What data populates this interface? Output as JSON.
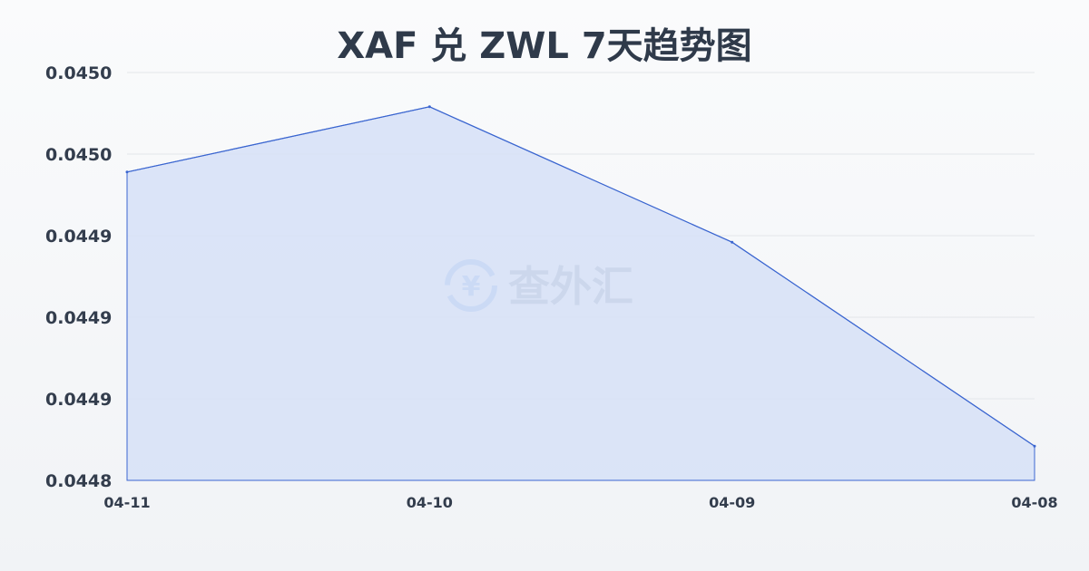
{
  "chart_data": {
    "type": "area",
    "title": "XAF 兑 ZWL 7天趋势图",
    "xlabel": "",
    "ylabel": "",
    "categories": [
      "04-11",
      "04-10",
      "04-09",
      "04-08"
    ],
    "series": [
      {
        "values": [
          0.044989,
          0.045029,
          0.044946,
          0.044821
        ]
      }
    ],
    "ylim": [
      0.0448,
      0.04505
    ],
    "yticks": [
      0.04505,
      0.045,
      0.04495,
      0.0449,
      0.04485,
      0.0448
    ],
    "ytick_labels": [
      "0.0450",
      "0.0450",
      "0.0449",
      "0.0449",
      "0.0449",
      "0.0448"
    ],
    "grid": true,
    "line_color": "#3b66d0",
    "fill_color": "#d6e1f7"
  },
  "watermark": {
    "text": "查外汇",
    "icon": "yen-exchange-icon",
    "color": "#8fb3ec"
  }
}
